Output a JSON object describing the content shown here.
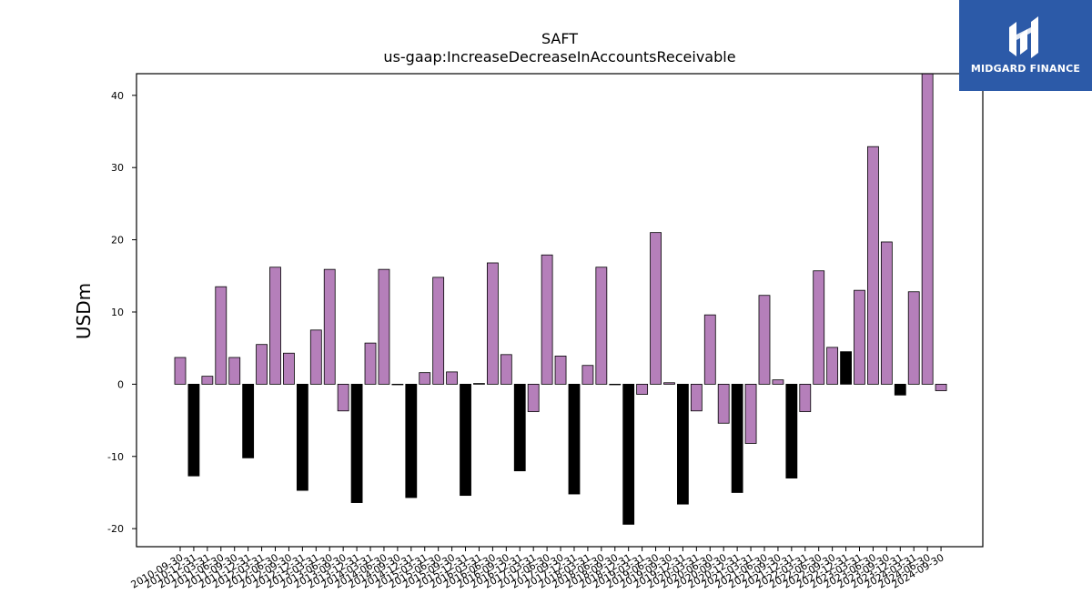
{
  "chart_data": {
    "type": "bar",
    "title": "SAFT",
    "subtitle": "us-gaap:IncreaseDecreaseInAccountsReceivable",
    "ylabel": "USDm",
    "ylim": [
      -22.5,
      43
    ],
    "yticks": [
      -20,
      -10,
      0,
      10,
      20,
      30,
      40
    ],
    "colors": {
      "default": "#b57fba",
      "q4": "#000000"
    },
    "categories": [
      "2010-09-30",
      "2010-12-31",
      "2011-03-31",
      "2011-06-30",
      "2011-09-30",
      "2011-12-31",
      "2012-03-31",
      "2012-06-30",
      "2012-09-30",
      "2012-12-31",
      "2013-03-31",
      "2013-06-30",
      "2013-09-30",
      "2013-12-31",
      "2014-03-31",
      "2014-06-30",
      "2014-09-30",
      "2014-12-31",
      "2015-03-31",
      "2015-06-30",
      "2015-09-30",
      "2015-12-31",
      "2016-03-31",
      "2016-06-30",
      "2016-09-30",
      "2016-12-31",
      "2017-03-31",
      "2017-06-30",
      "2017-09-30",
      "2017-12-31",
      "2018-03-31",
      "2018-06-30",
      "2018-09-30",
      "2018-12-31",
      "2019-03-31",
      "2019-06-30",
      "2019-09-30",
      "2019-12-31",
      "2020-03-31",
      "2020-06-30",
      "2020-09-30",
      "2020-12-31",
      "2021-03-31",
      "2021-06-30",
      "2021-09-30",
      "2021-12-31",
      "2022-03-31",
      "2022-06-30",
      "2022-09-30",
      "2022-12-31",
      "2023-03-31",
      "2023-06-30",
      "2023-09-30",
      "2023-12-31",
      "2024-03-31",
      "2024-06-30",
      "2024-09-30"
    ],
    "values": [
      3.7,
      -12.7,
      1.1,
      13.5,
      3.7,
      -10.2,
      5.5,
      16.2,
      4.3,
      -14.7,
      7.5,
      15.9,
      -3.7,
      -16.4,
      5.7,
      15.9,
      0,
      -15.7,
      1.6,
      14.8,
      1.7,
      -15.4,
      0.1,
      16.8,
      4.1,
      -12.0,
      -3.8,
      17.9,
      3.9,
      -15.2,
      2.6,
      16.2,
      0,
      -19.4,
      -1.4,
      21.0,
      0.2,
      -16.6,
      -3.7,
      9.6,
      -5.4,
      -15.0,
      -8.2,
      12.3,
      0.6,
      -13.0,
      -3.8,
      15.7,
      5.1,
      4.5,
      13.0,
      32.9,
      19.7,
      -1.5,
      12.8,
      43.0,
      -0.9
    ],
    "bar_colors": [
      "#b57fba",
      "#000000",
      "#b57fba",
      "#b57fba",
      "#b57fba",
      "#000000",
      "#b57fba",
      "#b57fba",
      "#b57fba",
      "#000000",
      "#b57fba",
      "#b57fba",
      "#b57fba",
      "#000000",
      "#b57fba",
      "#b57fba",
      "#b57fba",
      "#000000",
      "#b57fba",
      "#b57fba",
      "#b57fba",
      "#000000",
      "#b57fba",
      "#b57fba",
      "#b57fba",
      "#000000",
      "#b57fba",
      "#b57fba",
      "#b57fba",
      "#000000",
      "#b57fba",
      "#b57fba",
      "#b57fba",
      "#000000",
      "#b57fba",
      "#b57fba",
      "#b57fba",
      "#000000",
      "#b57fba",
      "#b57fba",
      "#b57fba",
      "#000000",
      "#b57fba",
      "#b57fba",
      "#b57fba",
      "#000000",
      "#b57fba",
      "#b57fba",
      "#b57fba",
      "#000000",
      "#b57fba",
      "#b57fba",
      "#b57fba",
      "#000000",
      "#b57fba",
      "#b57fba",
      "#b57fba"
    ],
    "grid": false,
    "legend": "none"
  },
  "logo": {
    "text": "MIDGARD FINANCE",
    "icon": "midgard-logo-icon",
    "background": "#2c5aa8"
  }
}
